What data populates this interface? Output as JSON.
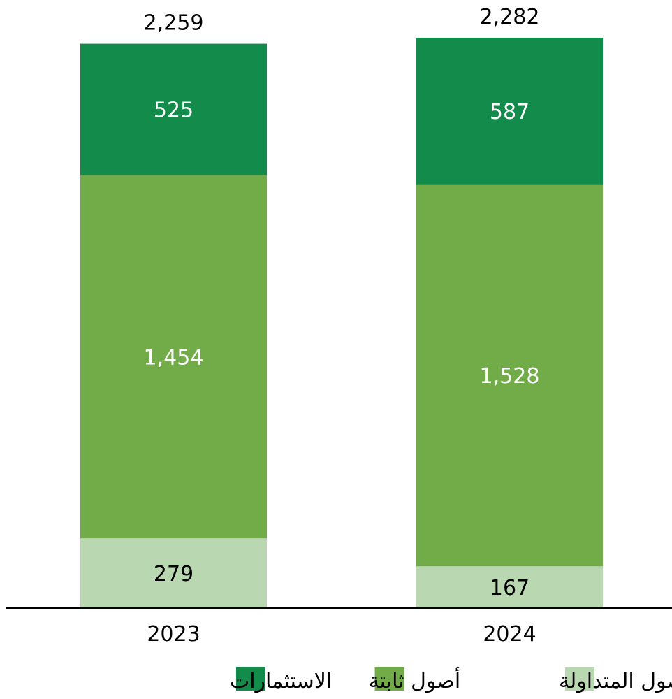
{
  "chart_data": {
    "type": "bar",
    "stacked": true,
    "categories": [
      "2023",
      "2024"
    ],
    "series": [
      {
        "name": "الأصول المتداولة",
        "values": [
          279,
          167
        ],
        "color": "#b9d7b0",
        "label_color": "#000000"
      },
      {
        "name": "أصول ثابتة",
        "values": [
          1454,
          1528
        ],
        "color": "#71ac48",
        "label_color": "#ffffff"
      },
      {
        "name": "الاستثمارات",
        "values": [
          525,
          587
        ],
        "color": "#138b4b",
        "label_color": "#ffffff"
      }
    ],
    "value_labels": [
      [
        "279",
        "167"
      ],
      [
        "1,454",
        "1,528"
      ],
      [
        "525",
        "587"
      ]
    ],
    "totals": [
      2259,
      2282
    ],
    "total_labels": [
      "2,259",
      "2,282"
    ],
    "title": "",
    "xlabel": "",
    "ylabel": "",
    "ylim": [
      0,
      2282
    ],
    "grid": false,
    "legend": "bottom"
  }
}
